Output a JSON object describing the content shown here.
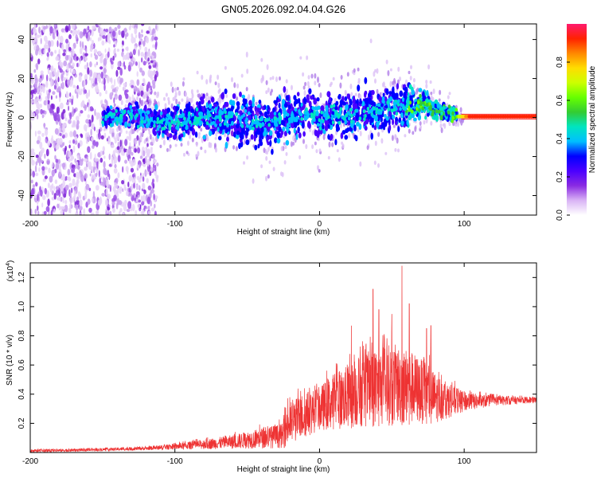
{
  "title": "GN05.2026.092.04.04.G26",
  "chart_data": [
    {
      "type": "heatmap",
      "xlabel": "Height of straight line (km)",
      "ylabel": "Frequency (Hz)",
      "xlim": [
        -200,
        150
      ],
      "ylim": [
        -50,
        48
      ],
      "xticks": [
        -200,
        -100,
        0,
        100
      ],
      "yticks": [
        -40,
        -20,
        0,
        20,
        40
      ],
      "colorbar": {
        "label": "Normalized spectral amplitude",
        "range": [
          0,
          1
        ],
        "ticks": [
          "0.0",
          "0.2",
          "0.4",
          "0.6",
          "0.8"
        ],
        "colors": [
          "#ffffff",
          "#d9b3f5",
          "#8a2be2",
          "#4b00ff",
          "#0000ff",
          "#00bfff",
          "#00e5c0",
          "#33cc33",
          "#66ff00",
          "#ccff00",
          "#ffdd00",
          "#ff8800",
          "#ff2200",
          "#ff1a6e"
        ]
      },
      "band_center": {
        "x": [
          -150,
          -130,
          -110,
          -100,
          -80,
          -60,
          -40,
          -20,
          -10,
          0,
          10,
          20,
          40,
          50,
          60,
          70,
          75,
          80,
          90,
          100,
          150
        ],
        "y": [
          0,
          1,
          -3,
          -2,
          0,
          0,
          -2,
          0,
          3,
          -1,
          2,
          1,
          4,
          5,
          5,
          8,
          7,
          4,
          2,
          0,
          0
        ]
      },
      "band_halfwidth": {
        "x": [
          -150,
          -120,
          -100,
          -60,
          -40,
          -20,
          0,
          20,
          40,
          60,
          70,
          80,
          90,
          100,
          150
        ],
        "y": [
          3,
          5,
          8,
          10,
          11,
          10,
          10,
          9,
          10,
          9,
          7,
          4,
          3,
          1,
          1
        ]
      },
      "noise_region": [
        -200,
        -112
      ],
      "peak_region": [
        95,
        150
      ]
    },
    {
      "type": "line",
      "xlabel": "Height of straight line (km)",
      "ylabel": "SNR (10 * v/v)",
      "scale_label": "(x10",
      "scale_exponent": "4",
      "xlim": [
        -200,
        150
      ],
      "ylim": [
        0,
        1.3
      ],
      "xticks": [
        -200,
        -100,
        0,
        100
      ],
      "yticks": [
        "0.2",
        "0.4",
        "0.6",
        "0.8",
        "1.0",
        "1.2"
      ],
      "line_color": "#ee3333",
      "envelope": {
        "x": [
          -200,
          -150,
          -120,
          -100,
          -80,
          -60,
          -40,
          -30,
          -25,
          -24,
          -10,
          0,
          10,
          20,
          30,
          40,
          50,
          60,
          70,
          80,
          90,
          100,
          110,
          120,
          150
        ],
        "y": [
          0.02,
          0.03,
          0.04,
          0.06,
          0.09,
          0.12,
          0.17,
          0.19,
          0.2,
          0.32,
          0.42,
          0.45,
          0.55,
          0.6,
          0.68,
          0.72,
          0.75,
          0.72,
          0.65,
          0.55,
          0.47,
          0.42,
          0.4,
          0.39,
          0.38
        ]
      },
      "baseline": {
        "x": [
          -200,
          -100,
          -25,
          0,
          40,
          80,
          100,
          120,
          150
        ],
        "y": [
          0.0,
          0.02,
          0.03,
          0.15,
          0.18,
          0.2,
          0.28,
          0.32,
          0.34
        ]
      },
      "peaks": [
        {
          "x": 57,
          "y": 1.28
        },
        {
          "x": 37,
          "y": 1.12
        },
        {
          "x": 22,
          "y": 0.87
        },
        {
          "x": 41,
          "y": 0.98
        },
        {
          "x": 62,
          "y": 1.02
        },
        {
          "x": 74,
          "y": 0.85
        },
        {
          "x": 77,
          "y": 0.87
        },
        {
          "x": 50,
          "y": 0.95
        }
      ]
    }
  ]
}
